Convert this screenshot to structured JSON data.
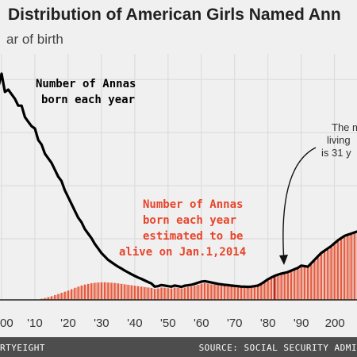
{
  "chart_data": {
    "type": "area",
    "title": "Distribution of American Girls Named Ann",
    "subtitle": "ar of birth",
    "xlabel": "",
    "ylabel": "",
    "x_tick_labels": [
      "00",
      "'10",
      "'20",
      "'30",
      "'40",
      "'50",
      "'60",
      "'70",
      "'80",
      "'90",
      "200"
    ],
    "x_tick_years": [
      1900,
      1910,
      1920,
      1930,
      1940,
      1950,
      1960,
      1970,
      1980,
      1990,
      2000
    ],
    "xlim": [
      1900,
      2007
    ],
    "ylim": [
      0,
      1
    ],
    "grid": true,
    "series": [
      {
        "name": "Number of Annas born each year",
        "type": "line",
        "color": "#000000",
        "x": [
          1898,
          1899,
          1900,
          1901,
          1902,
          1903,
          1904,
          1905,
          1906,
          1907,
          1908,
          1909,
          1910,
          1911,
          1912,
          1913,
          1914,
          1915,
          1916,
          1917,
          1918,
          1919,
          1920,
          1921,
          1922,
          1923,
          1924,
          1925,
          1926,
          1927,
          1928,
          1929,
          1930,
          1931,
          1932,
          1933,
          1934,
          1935,
          1936,
          1937,
          1938,
          1939,
          1940,
          1941,
          1942,
          1943,
          1944,
          1945,
          1946,
          1947,
          1948,
          1949,
          1950,
          1951,
          1952,
          1953,
          1954,
          1955,
          1956,
          1957,
          1958,
          1959,
          1960,
          1961,
          1962,
          1963,
          1964,
          1965,
          1966,
          1967,
          1968,
          1969,
          1970,
          1971,
          1972,
          1973,
          1974,
          1975,
          1976,
          1977,
          1978,
          1979,
          1980,
          1981,
          1982,
          1983,
          1984,
          1985,
          1986,
          1987,
          1988,
          1989,
          1990,
          1991,
          1992,
          1993,
          1994,
          1995,
          1996,
          1997,
          1998,
          1999,
          2000,
          2001,
          2002,
          2003,
          2004,
          2005,
          2006,
          2007
        ],
        "y": [
          0.95,
          0.93,
          0.99,
          0.91,
          0.92,
          0.9,
          0.88,
          0.85,
          0.85,
          0.8,
          0.78,
          0.76,
          0.75,
          0.7,
          0.68,
          0.64,
          0.62,
          0.6,
          0.57,
          0.54,
          0.52,
          0.48,
          0.45,
          0.42,
          0.39,
          0.36,
          0.34,
          0.31,
          0.29,
          0.27,
          0.245,
          0.225,
          0.205,
          0.19,
          0.175,
          0.165,
          0.155,
          0.145,
          0.137,
          0.128,
          0.12,
          0.112,
          0.105,
          0.098,
          0.092,
          0.085,
          0.078,
          0.072,
          0.058,
          0.06,
          0.065,
          0.063,
          0.06,
          0.058,
          0.063,
          0.06,
          0.057,
          0.062,
          0.064,
          0.066,
          0.07,
          0.075,
          0.08,
          0.082,
          0.079,
          0.076,
          0.073,
          0.07,
          0.068,
          0.066,
          0.065,
          0.063,
          0.061,
          0.06,
          0.058,
          0.058,
          0.057,
          0.058,
          0.06,
          0.063,
          0.07,
          0.08,
          0.09,
          0.098,
          0.105,
          0.11,
          0.115,
          0.118,
          0.122,
          0.128,
          0.134,
          0.14,
          0.15,
          0.148,
          0.145,
          0.16,
          0.175,
          0.19,
          0.205,
          0.215,
          0.225,
          0.235,
          0.248,
          0.26,
          0.27,
          0.28,
          0.285,
          0.29,
          0.295,
          0.3
        ]
      },
      {
        "name": "Number of Annas born each year estimated to be alive on Jan.1,2014",
        "type": "area",
        "color": "#e65a3c",
        "x": [
          1912,
          1913,
          1914,
          1915,
          1916,
          1917,
          1918,
          1919,
          1920,
          1921,
          1922,
          1923,
          1924,
          1925,
          1926,
          1927,
          1928,
          1929,
          1930,
          1931,
          1932,
          1933,
          1934,
          1935,
          1936,
          1937,
          1938,
          1939,
          1940,
          1941,
          1942,
          1943,
          1944,
          1945,
          1946,
          1947,
          1948,
          1949,
          1950,
          1951,
          1952,
          1953,
          1954,
          1955,
          1956,
          1957,
          1958,
          1959,
          1960,
          1961,
          1962,
          1963,
          1964,
          1965,
          1966,
          1967,
          1968,
          1969,
          1970,
          1971,
          1972,
          1973,
          1974,
          1975,
          1976,
          1977,
          1978,
          1979,
          1980,
          1981,
          1982,
          1983,
          1984,
          1985,
          1986,
          1987,
          1988,
          1989,
          1990,
          1991,
          1992,
          1993,
          1994,
          1995,
          1996,
          1997,
          1998,
          1999,
          2000,
          2001,
          2002,
          2003,
          2004,
          2005,
          2006,
          2007
        ],
        "y": [
          0.005,
          0.008,
          0.012,
          0.016,
          0.021,
          0.026,
          0.031,
          0.036,
          0.041,
          0.047,
          0.053,
          0.058,
          0.063,
          0.067,
          0.07,
          0.073,
          0.075,
          0.076,
          0.077,
          0.077,
          0.076,
          0.075,
          0.074,
          0.072,
          0.07,
          0.068,
          0.066,
          0.064,
          0.062,
          0.06,
          0.058,
          0.056,
          0.054,
          0.052,
          0.048,
          0.05,
          0.054,
          0.053,
          0.051,
          0.05,
          0.054,
          0.052,
          0.05,
          0.054,
          0.056,
          0.058,
          0.062,
          0.066,
          0.071,
          0.073,
          0.071,
          0.068,
          0.066,
          0.064,
          0.062,
          0.061,
          0.06,
          0.059,
          0.057,
          0.056,
          0.055,
          0.055,
          0.054,
          0.055,
          0.057,
          0.06,
          0.066,
          0.075,
          0.085,
          0.093,
          0.1,
          0.105,
          0.11,
          0.113,
          0.117,
          0.123,
          0.129,
          0.135,
          0.145,
          0.143,
          0.141,
          0.155,
          0.17,
          0.185,
          0.2,
          0.21,
          0.22,
          0.23,
          0.243,
          0.255,
          0.265,
          0.275,
          0.28,
          0.285,
          0.29,
          0.295
        ]
      }
    ],
    "annotations": [
      {
        "id": "born",
        "lines": [
          "Number of Annas",
          "born each year"
        ],
        "color": "#000000"
      },
      {
        "id": "alive",
        "lines": [
          "Number of Annas",
          "born each year",
          "estimated to be",
          "alive on Jan.1,2014"
        ],
        "color": "#e8442a"
      },
      {
        "id": "median",
        "lines": [
          "The m",
          "living",
          "is 31 y"
        ],
        "color": "#333333"
      }
    ],
    "highlight_year": 1982
  },
  "footer": {
    "left": "RTYEIGHT",
    "right": "SOURCE: SOCIAL SECURITY ADMI",
    "background": "#4d4d4d"
  },
  "colors": {
    "background": "#f0f0f0",
    "grid": "#d9d9d9",
    "axis": "#222222",
    "highlight_bar": "#b8281a"
  }
}
